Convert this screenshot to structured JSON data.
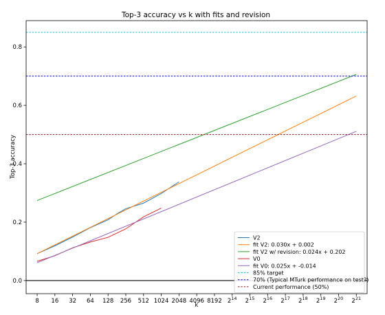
{
  "chart_data": {
    "type": "line",
    "title": "Top-3 accuracy vs k with fits and revision",
    "xlabel": "k",
    "ylabel": "Top-3 accuracy",
    "x_scale": "log2",
    "x_ticks": [
      {
        "label": "8"
      },
      {
        "label": "16"
      },
      {
        "label": "32"
      },
      {
        "label": "64"
      },
      {
        "label": "128"
      },
      {
        "label": "256"
      },
      {
        "label": "512"
      },
      {
        "label": "1024"
      },
      {
        "label": "2048"
      },
      {
        "label": "4096"
      },
      {
        "label": "8192"
      },
      {
        "base": "2",
        "exp": "14"
      },
      {
        "base": "2",
        "exp": "15"
      },
      {
        "base": "2",
        "exp": "16"
      },
      {
        "base": "2",
        "exp": "17"
      },
      {
        "base": "2",
        "exp": "18"
      },
      {
        "base": "2",
        "exp": "19"
      },
      {
        "base": "2",
        "exp": "20"
      },
      {
        "base": "2",
        "exp": "21"
      }
    ],
    "x_tick_values": [
      8,
      16,
      32,
      64,
      128,
      256,
      512,
      1024,
      2048,
      4096,
      8192,
      16384,
      32768,
      65536,
      131072,
      262144,
      524288,
      1048576,
      2097152
    ],
    "y_ticks": [
      "0.0",
      "0.2",
      "0.4",
      "0.6",
      "0.8"
    ],
    "y_tick_values": [
      0.0,
      0.2,
      0.4,
      0.6,
      0.8
    ],
    "xlim": [
      5.2,
      3200000
    ],
    "ylim": [
      -0.045,
      0.89
    ],
    "grid": false,
    "legend_position": "lower-right",
    "series": [
      {
        "name": "V2",
        "color": "#1f77b4",
        "style": "solid",
        "x": [
          8,
          16,
          32,
          64,
          128,
          180,
          256,
          512,
          1024,
          2048
        ],
        "y": [
          0.092,
          0.119,
          0.149,
          0.181,
          0.208,
          0.228,
          0.246,
          0.265,
          0.298,
          0.338
        ]
      },
      {
        "name": "fit V2: 0.030x + 0.002",
        "color": "#ff7f0e",
        "style": "solid",
        "x": [
          8,
          2097152
        ],
        "y": [
          0.092,
          0.632
        ]
      },
      {
        "name": "fit V2 w/ revision: 0.024x + 0.202",
        "color": "#2ca02c",
        "style": "solid",
        "x": [
          8,
          2097152
        ],
        "y": [
          0.274,
          0.706
        ]
      },
      {
        "name": "V0",
        "color": "#d62728",
        "style": "solid",
        "x": [
          8,
          16,
          32,
          64,
          128,
          256,
          512,
          1024
        ],
        "y": [
          0.066,
          0.085,
          0.112,
          0.132,
          0.148,
          0.177,
          0.218,
          0.248
        ]
      },
      {
        "name": "fit V0: 0.025x + -0.014",
        "color": "#9467bd",
        "style": "solid",
        "x": [
          8,
          2097152
        ],
        "y": [
          0.061,
          0.511
        ]
      },
      {
        "name": "85% target",
        "color": "#17becf",
        "style": "dashed",
        "hline": 0.85
      },
      {
        "name": "70% (Typical MTurk performance on test?)",
        "color": "#0000dd",
        "style": "dashed",
        "hline": 0.7
      },
      {
        "name": "Current performance (50%)",
        "color": "#8c1a1a",
        "style": "dashed",
        "hline": 0.5
      }
    ],
    "zero_line": 0.0
  }
}
